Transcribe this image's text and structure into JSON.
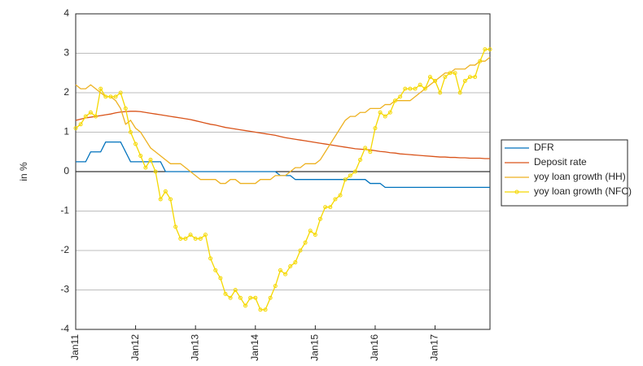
{
  "chart_data": {
    "type": "line",
    "ylabel": "in %",
    "categories": [
      "Jan11",
      null,
      null,
      null,
      null,
      null,
      null,
      null,
      null,
      null,
      null,
      null,
      "Jan12",
      null,
      null,
      null,
      null,
      null,
      null,
      null,
      null,
      null,
      null,
      null,
      "Jan13",
      null,
      null,
      null,
      null,
      null,
      null,
      null,
      null,
      null,
      null,
      null,
      "Jan14",
      null,
      null,
      null,
      null,
      null,
      null,
      null,
      null,
      null,
      null,
      null,
      "Jan15",
      null,
      null,
      null,
      null,
      null,
      null,
      null,
      null,
      null,
      null,
      null,
      "Jan16",
      null,
      null,
      null,
      null,
      null,
      null,
      null,
      null,
      null,
      null,
      null,
      "Jan17",
      null,
      null,
      null,
      null,
      null,
      null,
      null,
      null,
      null,
      null,
      null
    ],
    "ylim": [
      -4,
      4
    ],
    "yticks": [
      -4,
      -3,
      -2,
      -1,
      0,
      1,
      2,
      3,
      4
    ],
    "grid": true,
    "legend": "outside right",
    "series": [
      {
        "name": "DFR",
        "color": "#0072bd",
        "marker": false,
        "values": [
          0.25,
          0.25,
          0.25,
          0.5,
          0.5,
          0.5,
          0.75,
          0.75,
          0.75,
          0.75,
          0.5,
          0.25,
          0.25,
          0.25,
          0.25,
          0.25,
          0.25,
          0.25,
          0,
          0,
          0,
          0,
          0,
          0,
          0,
          0,
          0,
          0,
          0,
          0,
          0,
          0,
          0,
          0,
          0,
          0,
          0,
          0,
          0,
          0,
          0,
          -0.1,
          -0.1,
          -0.1,
          -0.2,
          -0.2,
          -0.2,
          -0.2,
          -0.2,
          -0.2,
          -0.2,
          -0.2,
          -0.2,
          -0.2,
          -0.2,
          -0.2,
          -0.2,
          -0.2,
          -0.2,
          -0.3,
          -0.3,
          -0.3,
          -0.4,
          -0.4,
          -0.4,
          -0.4,
          -0.4,
          -0.4,
          -0.4,
          -0.4,
          -0.4,
          -0.4,
          -0.4,
          -0.4,
          -0.4,
          -0.4,
          -0.4,
          -0.4,
          -0.4,
          -0.4,
          -0.4,
          -0.4,
          -0.4,
          -0.4
        ]
      },
      {
        "name": "Deposit rate",
        "color": "#d95319",
        "marker": false,
        "values": [
          1.3,
          1.33,
          1.36,
          1.38,
          1.4,
          1.42,
          1.44,
          1.46,
          1.49,
          1.51,
          1.52,
          1.53,
          1.53,
          1.52,
          1.5,
          1.48,
          1.46,
          1.44,
          1.42,
          1.4,
          1.38,
          1.36,
          1.34,
          1.32,
          1.29,
          1.26,
          1.23,
          1.2,
          1.18,
          1.15,
          1.12,
          1.1,
          1.08,
          1.06,
          1.04,
          1.02,
          1.0,
          0.98,
          0.96,
          0.94,
          0.92,
          0.89,
          0.86,
          0.84,
          0.82,
          0.8,
          0.78,
          0.76,
          0.74,
          0.72,
          0.7,
          0.68,
          0.66,
          0.64,
          0.62,
          0.6,
          0.58,
          0.57,
          0.56,
          0.55,
          0.53,
          0.51,
          0.5,
          0.48,
          0.47,
          0.45,
          0.44,
          0.43,
          0.42,
          0.41,
          0.4,
          0.39,
          0.38,
          0.37,
          0.37,
          0.36,
          0.36,
          0.35,
          0.35,
          0.34,
          0.34,
          0.34,
          0.33,
          0.33
        ]
      },
      {
        "name": "yoy loan growth (HH)",
        "color": "#edb120",
        "marker": false,
        "values": [
          2.2,
          2.1,
          2.1,
          2.2,
          2.1,
          2.0,
          1.9,
          1.9,
          1.8,
          1.6,
          1.2,
          1.3,
          1.1,
          1.0,
          0.8,
          0.6,
          0.5,
          0.4,
          0.3,
          0.2,
          0.2,
          0.2,
          0.1,
          0.0,
          -0.1,
          -0.2,
          -0.2,
          -0.2,
          -0.2,
          -0.3,
          -0.3,
          -0.2,
          -0.2,
          -0.3,
          -0.3,
          -0.3,
          -0.3,
          -0.2,
          -0.2,
          -0.2,
          -0.1,
          -0.1,
          -0.1,
          0.0,
          0.1,
          0.1,
          0.2,
          0.2,
          0.2,
          0.3,
          0.5,
          0.7,
          0.9,
          1.1,
          1.3,
          1.4,
          1.4,
          1.5,
          1.5,
          1.6,
          1.6,
          1.6,
          1.7,
          1.7,
          1.8,
          1.8,
          1.8,
          1.8,
          1.9,
          2.0,
          2.1,
          2.2,
          2.3,
          2.4,
          2.5,
          2.5,
          2.6,
          2.6,
          2.6,
          2.7,
          2.7,
          2.8,
          2.8,
          2.9
        ]
      },
      {
        "name": "yoy loan growth (NFC)",
        "color": "#f5d800",
        "marker": true,
        "values": [
          1.1,
          1.2,
          1.4,
          1.5,
          1.4,
          2.1,
          1.9,
          1.9,
          1.9,
          2.0,
          1.6,
          1.0,
          0.7,
          0.4,
          0.1,
          0.3,
          0.0,
          -0.7,
          -0.5,
          -0.7,
          -1.4,
          -1.7,
          -1.7,
          -1.6,
          -1.7,
          -1.7,
          -1.6,
          -2.2,
          -2.5,
          -2.7,
          -3.1,
          -3.2,
          -3.0,
          -3.2,
          -3.4,
          -3.2,
          -3.2,
          -3.5,
          -3.5,
          -3.2,
          -2.9,
          -2.5,
          -2.6,
          -2.4,
          -2.3,
          -2.0,
          -1.8,
          -1.5,
          -1.6,
          -1.2,
          -0.9,
          -0.9,
          -0.7,
          -0.6,
          -0.2,
          -0.1,
          0.0,
          0.3,
          0.6,
          0.5,
          1.1,
          1.5,
          1.4,
          1.5,
          1.8,
          1.9,
          2.1,
          2.1,
          2.1,
          2.2,
          2.1,
          2.4,
          2.3,
          2.0,
          2.4,
          2.5,
          2.5,
          2.0,
          2.3,
          2.4,
          2.4,
          2.8,
          3.1,
          3.1
        ]
      }
    ]
  }
}
